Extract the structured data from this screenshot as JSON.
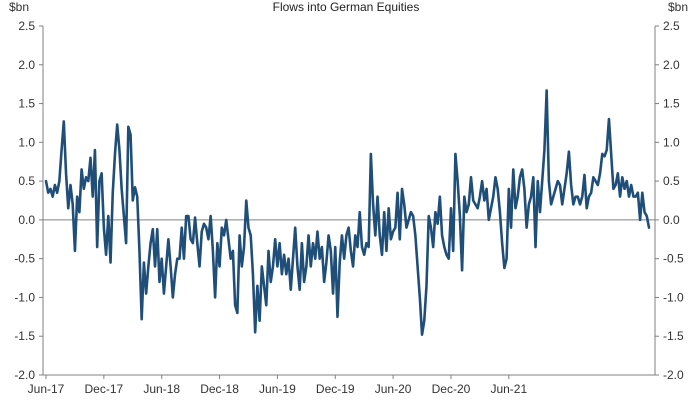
{
  "chart_data": {
    "type": "line",
    "title": "Flows into German Equities",
    "y_unit_left": "$bn",
    "y_unit_right": "$bn",
    "ylim": [
      -2.0,
      2.5
    ],
    "y_ticks": [
      -2.0,
      -1.5,
      -1.0,
      -0.5,
      0.0,
      0.5,
      1.0,
      1.5,
      2.0,
      2.5
    ],
    "y_tick_labels": [
      "-2.0",
      "-1.5",
      "-1.0",
      "-0.5",
      "0.0",
      "0.5",
      "1.0",
      "1.5",
      "2.0",
      "2.5"
    ],
    "x_tick_labels": [
      "Jun-17",
      "Dec-17",
      "Jun-18",
      "Dec-18",
      "Jun-19",
      "Dec-19",
      "Jun-20",
      "Dec-20",
      "Jun-21"
    ],
    "grid": false,
    "zero_line": true,
    "line_color": "#1f4e79",
    "series": [
      {
        "values": [
          0.5,
          0.35,
          0.4,
          0.3,
          0.45,
          0.35,
          0.5,
          0.9,
          1.27,
          0.6,
          0.15,
          0.45,
          0.2,
          -0.4,
          0.3,
          0.1,
          0.65,
          0.4,
          0.55,
          0.5,
          0.8,
          0.3,
          0.9,
          -0.35,
          0.5,
          0.6,
          -0.1,
          -0.45,
          0.05,
          -0.55,
          0.35,
          0.85,
          1.23,
          0.9,
          0.4,
          0.05,
          -0.3,
          1.2,
          1.1,
          0.25,
          0.42,
          0.3,
          -0.4,
          -1.28,
          -0.55,
          -0.95,
          -0.6,
          -0.3,
          -0.12,
          -0.6,
          -0.12,
          -0.8,
          -0.5,
          -0.95,
          -0.6,
          -0.25,
          -0.6,
          -1.0,
          -0.7,
          -0.5,
          -0.5,
          -0.1,
          -0.5,
          0.05,
          0.05,
          -0.25,
          -0.3,
          0.03,
          -0.3,
          -0.6,
          -0.15,
          -0.05,
          -0.1,
          -0.25,
          0.05,
          -0.4,
          -1.0,
          -0.3,
          -0.6,
          -0.1,
          -0.2,
          0.0,
          -0.25,
          -0.5,
          -0.4,
          -1.1,
          -1.2,
          -0.2,
          -0.6,
          -0.35,
          0.25,
          -0.1,
          -0.2,
          -0.7,
          -1.45,
          -0.85,
          -1.3,
          -0.6,
          -0.85,
          -1.1,
          -0.4,
          -0.8,
          -0.6,
          -0.25,
          -0.6,
          -0.3,
          -0.7,
          -0.45,
          -0.7,
          -0.5,
          -0.9,
          -0.5,
          -0.1,
          -0.6,
          -0.9,
          -0.3,
          -0.8,
          -0.6,
          -0.2,
          -0.6,
          -0.3,
          -0.5,
          -0.15,
          -0.5,
          -0.35,
          -0.8,
          -0.55,
          -0.2,
          -0.4,
          -0.95,
          -0.35,
          -1.25,
          -0.55,
          -0.2,
          -0.5,
          -0.2,
          -0.1,
          -0.4,
          -0.6,
          -0.2,
          -0.35,
          0.1,
          -0.35,
          -0.45,
          -0.3,
          -0.35,
          0.85,
          0.2,
          -0.2,
          0.3,
          -0.2,
          -0.45,
          0.1,
          -0.4,
          0.15,
          -0.25,
          -0.15,
          -0.1,
          0.35,
          -0.25,
          0.4,
          0.2,
          -0.1,
          0.0,
          0.1,
          0.05,
          -0.2,
          -0.6,
          -1.0,
          -1.48,
          -1.3,
          -0.85,
          0.05,
          -0.1,
          -0.35,
          0.1,
          -0.05,
          0.3,
          -0.2,
          -0.35,
          -0.45,
          -0.5,
          0.15,
          -0.4,
          0.85,
          0.5,
          0.05,
          -0.65,
          0.3,
          0.1,
          0.2,
          0.55,
          0.25,
          0.2,
          0.15,
          0.3,
          0.5,
          0.25,
          0.4,
          0.0,
          0.15,
          0.3,
          0.55,
          0.4,
          0.1,
          -0.3,
          -0.62,
          -0.5,
          0.4,
          -0.1,
          0.65,
          0.15,
          0.3,
          0.55,
          0.65,
          0.4,
          -0.1,
          0.2,
          0.3,
          0.55,
          -0.35,
          0.5,
          0.1,
          0.5,
          0.9,
          1.67,
          0.5,
          0.2,
          0.3,
          0.4,
          0.5,
          0.45,
          0.2,
          0.4,
          0.6,
          0.88,
          0.45,
          0.2,
          0.3,
          0.3,
          0.2,
          0.3,
          0.58,
          0.15,
          0.3,
          0.35,
          0.55,
          0.5,
          0.45,
          0.6,
          0.85,
          0.82,
          0.9,
          1.3,
          0.85,
          0.4,
          0.45,
          0.6,
          0.3,
          0.55,
          0.4,
          0.5,
          0.3,
          0.45,
          0.3,
          0.3,
          0.35,
          0.0,
          0.35,
          0.1,
          0.05,
          -0.1
        ]
      }
    ]
  }
}
